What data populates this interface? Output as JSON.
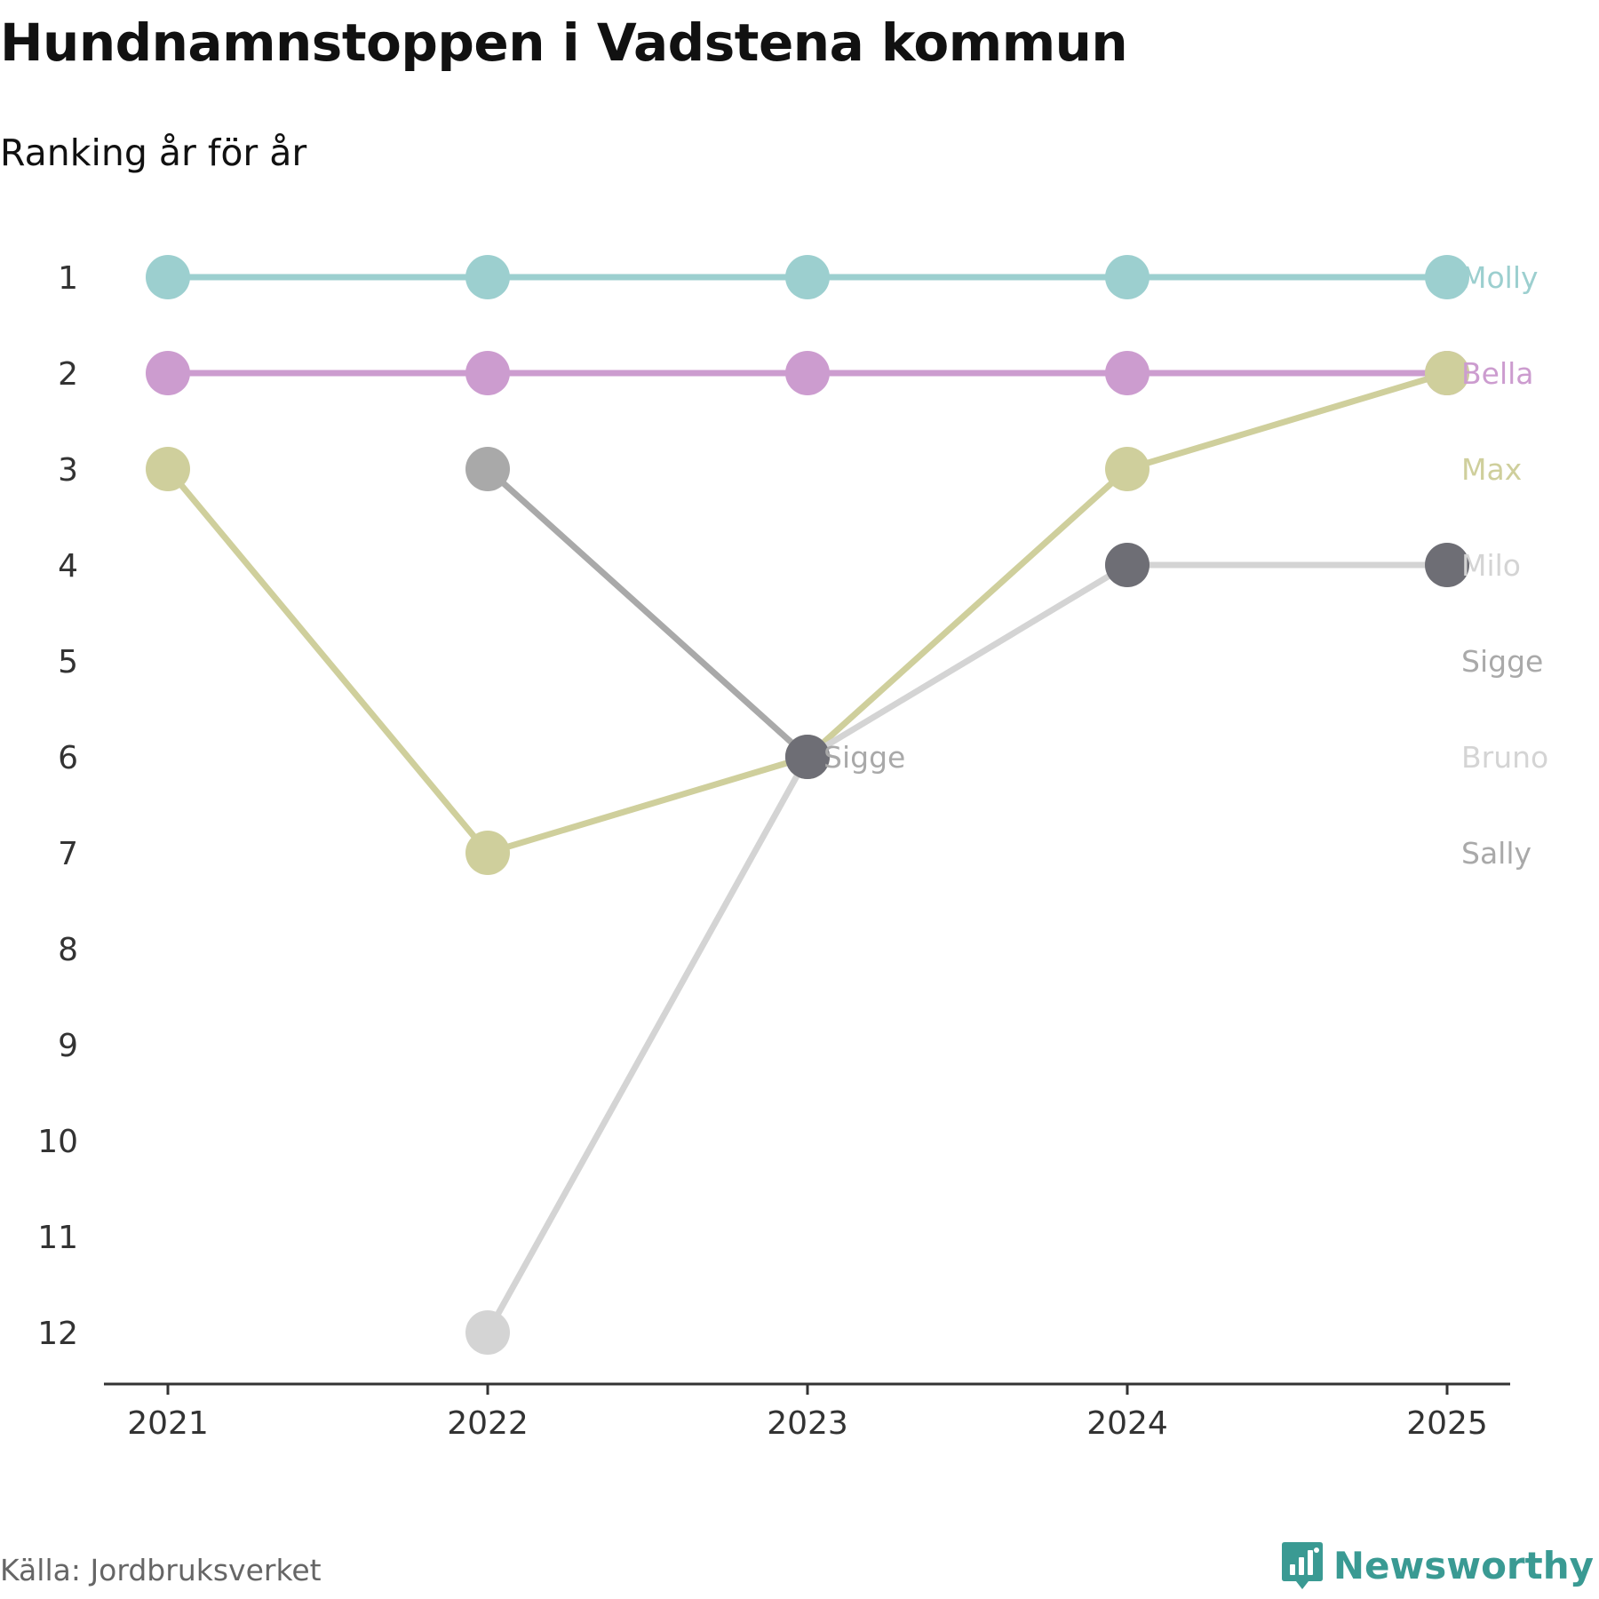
{
  "header": {
    "title": "Hundnamnstoppen i Vadstena kommun",
    "subtitle": "Ranking år för år"
  },
  "footer": {
    "source": "Källa: Jordbruksverket",
    "brand": "Newsworthy",
    "brand_icon": "bar-chart-speech-bubble-icon"
  },
  "chart_data": {
    "type": "line",
    "subtype": "bump",
    "title": "Hundnamnstoppen i Vadstena kommun",
    "subtitle": "Ranking år för år",
    "x": [
      "2021",
      "2022",
      "2023",
      "2024",
      "2025"
    ],
    "y_ticks": [
      "1",
      "2",
      "3",
      "4",
      "5",
      "6",
      "7",
      "8",
      "9",
      "10",
      "11",
      "12"
    ],
    "ylim": [
      1,
      12
    ],
    "y_inverted": true,
    "grid": false,
    "series": [
      {
        "name": "Molly",
        "color": "#9ccfcf",
        "values": [
          1,
          1,
          1,
          1,
          1
        ]
      },
      {
        "name": "Bella",
        "color": "#cc9ccf",
        "values": [
          2,
          2,
          2,
          2,
          2
        ]
      },
      {
        "name": "Max",
        "color": "#cfcf9c",
        "values": [
          3,
          7,
          6,
          3,
          2
        ]
      },
      {
        "name": "Milo",
        "color": "#d4d4d4",
        "values": [
          null,
          12,
          6,
          4,
          4
        ]
      },
      {
        "name": "Sigge",
        "color": "#a9a9a9",
        "values": [
          null,
          3,
          6,
          null,
          null
        ]
      },
      {
        "name": "Bruno",
        "color": "#d4d4d4",
        "values": [
          null,
          null,
          null,
          null,
          null
        ]
      },
      {
        "name": "Sally",
        "color": "#a9a9a9",
        "values": [
          null,
          null,
          null,
          null,
          null
        ]
      }
    ],
    "highlight_points": [
      {
        "series": "Milo",
        "x": "2023",
        "y": 6,
        "color": "#6e6e75"
      },
      {
        "series": "Milo",
        "x": "2024",
        "y": 4,
        "color": "#6e6e75"
      },
      {
        "series": "Milo",
        "x": "2025",
        "y": 4,
        "color": "#6e6e75"
      }
    ],
    "annotations": [
      {
        "text": "Sigge",
        "x": "2023",
        "y": 6,
        "color": "#a9a9a9"
      }
    ],
    "end_labels": [
      {
        "text": "Molly",
        "color": "#9ccfcf"
      },
      {
        "text": "Bella",
        "color": "#cc9ccf"
      },
      {
        "text": "Max",
        "color": "#cfcf9c"
      },
      {
        "text": "Milo",
        "color": "#d4d4d4"
      },
      {
        "text": "Sigge",
        "color": "#a9a9a9"
      },
      {
        "text": "Bruno",
        "color": "#d4d4d4"
      },
      {
        "text": "Sally",
        "color": "#a9a9a9"
      }
    ]
  }
}
